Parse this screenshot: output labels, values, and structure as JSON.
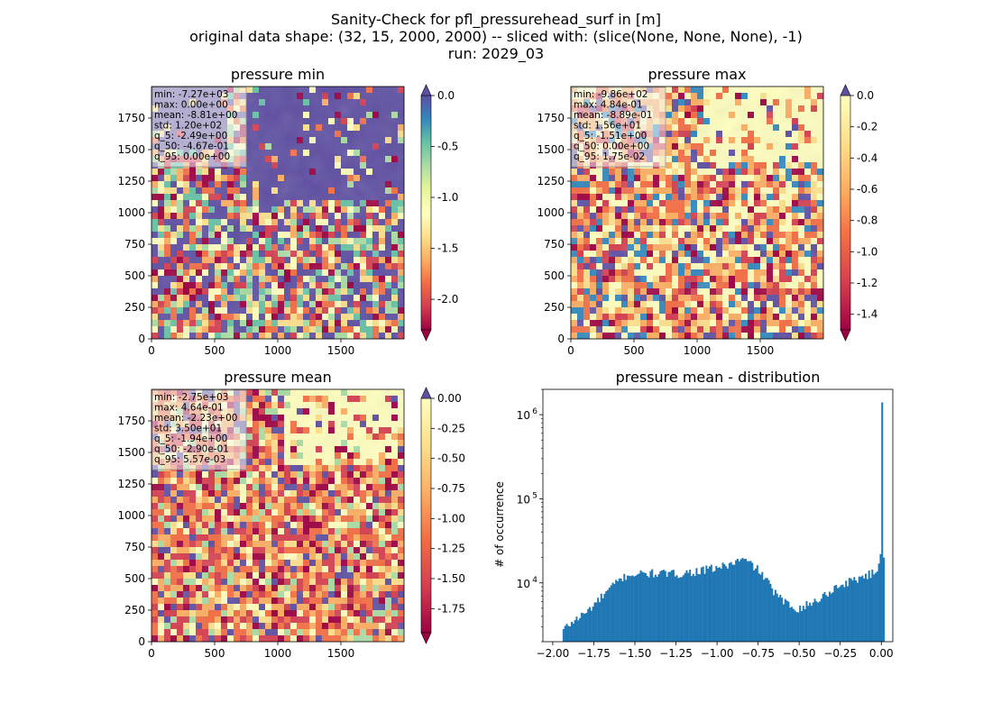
{
  "figure": {
    "title_lines": [
      "Sanity-Check for pfl_pressurehead_surf in [m]",
      "original data shape: (32, 15, 2000, 2000) -- sliced with: (slice(None, None, None), -1)",
      "run: 2029_03"
    ]
  },
  "chart_data": [
    {
      "type": "heatmap",
      "title": "pressure min",
      "colormap": "Spectral",
      "extent": [
        0,
        2000,
        0,
        2000
      ],
      "xticks": [
        "0",
        "500",
        "1000",
        "1500"
      ],
      "yticks": [
        "0",
        "250",
        "500",
        "750",
        "1000",
        "1250",
        "1500",
        "1750"
      ],
      "colorbar": {
        "range": [
          -2.3,
          0.0
        ],
        "ticks": [
          "0.0",
          "-0.5",
          "-1.0",
          "-1.5",
          "-2.0"
        ],
        "extend": "both"
      },
      "stats": [
        "min: -7.27e+03",
        "max: 0.00e+00",
        "mean: -8.81e+00",
        "std: 1.20e+02",
        "q_5: -2.49e+00",
        "q_50: -4.67e-01",
        "q_95: 0.00e+00"
      ]
    },
    {
      "type": "heatmap",
      "title": "pressure max",
      "colormap": "Spectral",
      "extent": [
        0,
        2000,
        0,
        2000
      ],
      "xticks": [
        "0",
        "500",
        "1000",
        "1500"
      ],
      "yticks": [
        "0",
        "250",
        "500",
        "750",
        "1000",
        "1250",
        "1500",
        "1750"
      ],
      "colorbar": {
        "range": [
          -1.5,
          0.0
        ],
        "ticks": [
          "0.0",
          "-0.2",
          "-0.4",
          "-0.6",
          "-0.8",
          "-1.0",
          "-1.2",
          "-1.4"
        ],
        "extend": "both"
      },
      "stats": [
        "min: -9.86e+02",
        "max: 4.84e-01",
        "mean: -8.89e-01",
        "std: 1.56e+01",
        "q_5: -1.51e+00",
        "q_50: 0.00e+00",
        "q_95: 1.75e-02"
      ]
    },
    {
      "type": "heatmap",
      "title": "pressure mean",
      "colormap": "Spectral",
      "extent": [
        0,
        2000,
        0,
        2000
      ],
      "xticks": [
        "0",
        "500",
        "1000",
        "1500"
      ],
      "yticks": [
        "0",
        "250",
        "500",
        "750",
        "1000",
        "1250",
        "1500",
        "1750"
      ],
      "colorbar": {
        "range": [
          -1.95,
          0.0
        ],
        "ticks": [
          "0.00",
          "-0.25",
          "-0.50",
          "-0.75",
          "-1.00",
          "-1.25",
          "-1.50",
          "-1.75"
        ],
        "extend": "both"
      },
      "stats": [
        "min: -2.75e+03",
        "max: 4.64e-01",
        "mean: -2.23e+00",
        "std: 3.50e+01",
        "q_5: -1.94e+00",
        "q_50: -2.90e-01",
        "q_95: 5.57e-03"
      ]
    },
    {
      "type": "bar",
      "title": "pressure mean - distribution",
      "ylabel": "# of occurrence",
      "yscale": "log",
      "xlim": [
        -2.06,
        0.07
      ],
      "ylim": [
        2000,
        2000000
      ],
      "xticks": [
        "-2.00",
        "-1.75",
        "-1.50",
        "-1.25",
        "-1.00",
        "-0.75",
        "-0.50",
        "-0.25",
        "0.00"
      ],
      "ytick_labels": [
        {
          "value": 10000,
          "base": "10",
          "exp": "4"
        },
        {
          "value": 100000,
          "base": "10",
          "exp": "5"
        },
        {
          "value": 1000000,
          "base": "10",
          "exp": "6"
        }
      ],
      "color": "#1f77b4",
      "bins": {
        "start": -1.94,
        "width": 0.01
      },
      "keypoints": [
        [
          -1.94,
          2800
        ],
        [
          -1.88,
          3500
        ],
        [
          -1.8,
          4500
        ],
        [
          -1.7,
          7000
        ],
        [
          -1.62,
          10000
        ],
        [
          -1.55,
          12500
        ],
        [
          -1.4,
          13000
        ],
        [
          -1.25,
          12800
        ],
        [
          -1.1,
          14000
        ],
        [
          -0.95,
          16000
        ],
        [
          -0.85,
          19000
        ],
        [
          -0.78,
          16000
        ],
        [
          -0.72,
          12000
        ],
        [
          -0.67,
          8500
        ],
        [
          -0.62,
          6500
        ],
        [
          -0.57,
          5500
        ],
        [
          -0.52,
          5000
        ],
        [
          -0.45,
          5500
        ],
        [
          -0.38,
          6500
        ],
        [
          -0.3,
          8500
        ],
        [
          -0.22,
          10000
        ],
        [
          -0.12,
          12000
        ],
        [
          -0.05,
          13000
        ],
        [
          -0.02,
          16000
        ]
      ],
      "last_bins": [
        [
          -0.01,
          22000
        ],
        [
          0.0,
          1400000
        ],
        [
          0.01,
          20000
        ]
      ]
    }
  ]
}
